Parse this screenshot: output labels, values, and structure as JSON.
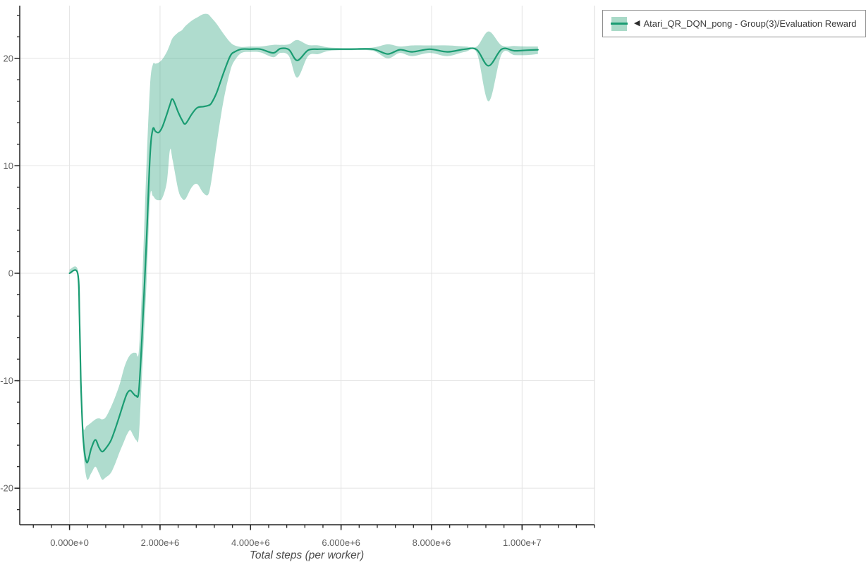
{
  "legend": {
    "icon": "◀",
    "label": "Atari_QR_DQN_pong - Group(3)/Evaluation Reward"
  },
  "chart_data": {
    "type": "line",
    "title": "",
    "xlabel": "Total steps (per worker)",
    "ylabel": "",
    "x_unit": "steps",
    "xlim_e6": [
      -1.1,
      11.6
    ],
    "ylim": [
      -23.4,
      24.9
    ],
    "grid": true,
    "legend_position": "top-right",
    "x_ticks": [
      {
        "value_e6": 0,
        "label": "0.000e+0"
      },
      {
        "value_e6": 2,
        "label": "2.000e+6"
      },
      {
        "value_e6": 4,
        "label": "4.000e+6"
      },
      {
        "value_e6": 6,
        "label": "6.000e+6"
      },
      {
        "value_e6": 8,
        "label": "8.000e+6"
      },
      {
        "value_e6": 10,
        "label": "1.000e+7"
      }
    ],
    "y_ticks": [
      {
        "value": 20,
        "label": "20"
      },
      {
        "value": 10,
        "label": "10"
      },
      {
        "value": 0,
        "label": "0"
      },
      {
        "value": -10,
        "label": "-10"
      },
      {
        "value": -20,
        "label": "-20"
      }
    ],
    "x_minor_step_e6": 0.4,
    "x_minor_range_e6": [
      -0.8,
      11.6
    ],
    "y_minor_step": 2,
    "y_minor_range": [
      -22,
      24
    ],
    "colors": {
      "line": "#1a9c72",
      "band": "rgba(26,156,114,0.35)",
      "grid": "#e4e4e4",
      "plot_border": "#e0e0e0",
      "axis": "#222222",
      "tick_label": "#606060",
      "axis_title": "#4a4a4a",
      "legend_border": "#8c8c8c",
      "legend_text": "#3c3c3c"
    },
    "series": [
      {
        "name": "Atari_QR_DQN_pong - Group(3)/Evaluation Reward",
        "x_e6": [
          0.0,
          0.18,
          0.22,
          0.25,
          0.3,
          0.38,
          0.48,
          0.57,
          0.65,
          0.72,
          0.8,
          0.91,
          1.0,
          1.11,
          1.2,
          1.27,
          1.34,
          1.41,
          1.47,
          1.53,
          1.6,
          1.7,
          1.78,
          1.84,
          1.9,
          1.97,
          2.05,
          2.15,
          2.22,
          2.28,
          2.4,
          2.48,
          2.56,
          2.7,
          2.82,
          2.95,
          3.06,
          3.13,
          3.25,
          3.4,
          3.55,
          3.65,
          3.8,
          4.0,
          4.22,
          4.5,
          4.66,
          4.85,
          5.03,
          5.27,
          5.5,
          5.75,
          6.2,
          6.7,
          7.03,
          7.3,
          7.57,
          7.96,
          8.35,
          8.74,
          9.0,
          9.26,
          9.55,
          9.83,
          10.1,
          10.35
        ],
        "mean": [
          0,
          0,
          -4,
          -10,
          -15.2,
          -17.6,
          -16.3,
          -15.5,
          -16.2,
          -16.6,
          -16.3,
          -15.6,
          -14.6,
          -13.2,
          -12.0,
          -11.2,
          -10.9,
          -11.2,
          -11.4,
          -11.0,
          -6.0,
          3.0,
          11.0,
          13.4,
          13.2,
          13.1,
          13.6,
          14.8,
          15.7,
          16.2,
          15.0,
          14.3,
          13.9,
          14.8,
          15.4,
          15.5,
          15.6,
          15.8,
          16.8,
          18.6,
          20.2,
          20.6,
          20.85,
          20.85,
          20.85,
          20.5,
          20.9,
          20.8,
          19.8,
          20.75,
          20.85,
          20.85,
          20.85,
          20.85,
          20.4,
          20.8,
          20.6,
          20.85,
          20.6,
          20.85,
          20.8,
          19.3,
          20.85,
          20.7,
          20.75,
          20.8
        ],
        "lower": [
          -0.05,
          -0.05,
          -4.5,
          -10.6,
          -16.2,
          -19.1,
          -18.6,
          -18.0,
          -18.6,
          -19.2,
          -19.0,
          -18.6,
          -17.8,
          -16.6,
          -15.7,
          -15.0,
          -14.6,
          -15.1,
          -15.5,
          -15.2,
          -9.5,
          -1.0,
          7.0,
          7.2,
          6.9,
          6.8,
          7.0,
          8.5,
          11.5,
          10.5,
          7.8,
          7.0,
          6.9,
          8.0,
          8.3,
          7.5,
          7.3,
          8.5,
          12.0,
          16.0,
          18.8,
          19.8,
          20.5,
          20.6,
          20.55,
          20.1,
          20.5,
          20.2,
          18.2,
          20.2,
          20.4,
          20.7,
          20.75,
          20.7,
          20.0,
          20.5,
          20.2,
          20.5,
          20.2,
          20.6,
          20.5,
          16.0,
          20.4,
          20.3,
          20.3,
          20.4
        ],
        "upper": [
          0.35,
          0.35,
          -3.5,
          -9.4,
          -14.2,
          -14.2,
          -13.9,
          -13.6,
          -13.5,
          -13.6,
          -13.4,
          -12.5,
          -11.6,
          -10.3,
          -8.9,
          -8.1,
          -7.6,
          -7.4,
          -7.4,
          -7.3,
          -1.5,
          10.0,
          17.5,
          19.4,
          19.5,
          19.6,
          19.9,
          20.6,
          21.3,
          21.9,
          22.4,
          22.6,
          23.0,
          23.5,
          23.8,
          24.1,
          24.1,
          23.8,
          23.2,
          22.3,
          21.5,
          21.2,
          21.05,
          21.1,
          21.1,
          21.25,
          21.25,
          21.3,
          21.7,
          21.25,
          21.2,
          21.0,
          20.95,
          21.0,
          21.3,
          21.1,
          21.2,
          21.2,
          21.2,
          21.1,
          21.1,
          22.5,
          21.2,
          21.15,
          21.1,
          21.1
        ]
      }
    ]
  }
}
